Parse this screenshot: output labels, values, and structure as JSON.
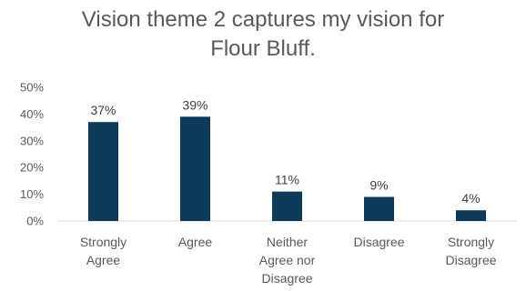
{
  "chart_data": {
    "type": "bar",
    "title_lines": [
      "Vision theme 2 captures my vision for",
      "Flour Bluff."
    ],
    "categories": [
      [
        "Strongly",
        "Agree"
      ],
      [
        "Agree"
      ],
      [
        "Neither",
        "Agree nor",
        "Disagree"
      ],
      [
        "Disagree"
      ],
      [
        "Strongly",
        "Disagree"
      ]
    ],
    "values": [
      37,
      39,
      11,
      9,
      4
    ],
    "data_labels": [
      "37%",
      "39%",
      "11%",
      "9%",
      "4%"
    ],
    "y_ticks": [
      0,
      10,
      20,
      30,
      40,
      50
    ],
    "y_tick_labels": [
      "0%",
      "10%",
      "20%",
      "30%",
      "40%",
      "50%"
    ],
    "ylim": [
      0,
      50
    ],
    "xlabel": "",
    "ylabel": "",
    "grid": false,
    "bar_color": "#0e3a5a",
    "axis_color": "#d9d9d9"
  }
}
